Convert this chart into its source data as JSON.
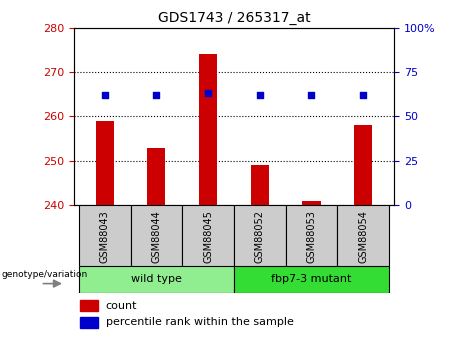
{
  "title": "GDS1743 / 265317_at",
  "categories": [
    "GSM88043",
    "GSM88044",
    "GSM88045",
    "GSM88052",
    "GSM88053",
    "GSM88054"
  ],
  "counts": [
    259,
    253,
    274,
    249,
    241,
    258
  ],
  "percentile_ranks": [
    62,
    62,
    63,
    62,
    62,
    62
  ],
  "bar_bottom": 240,
  "ylim_left": [
    240,
    280
  ],
  "ylim_right": [
    0,
    100
  ],
  "yticks_left": [
    240,
    250,
    260,
    270,
    280
  ],
  "yticks_right": [
    0,
    25,
    50,
    75,
    100
  ],
  "bar_color": "#cc0000",
  "dot_color": "#0000cc",
  "groups": [
    {
      "label": "wild type",
      "indices": [
        0,
        1,
        2
      ],
      "color": "#90ee90"
    },
    {
      "label": "fbp7-3 mutant",
      "indices": [
        3,
        4,
        5
      ],
      "color": "#33dd33"
    }
  ],
  "group_row_label": "genotype/variation",
  "legend_count_label": "count",
  "legend_percentile_label": "percentile rank within the sample",
  "tick_label_color_left": "#cc0000",
  "tick_label_color_right": "#0000cc",
  "background_tickrow": "#cccccc",
  "bar_width": 0.35
}
